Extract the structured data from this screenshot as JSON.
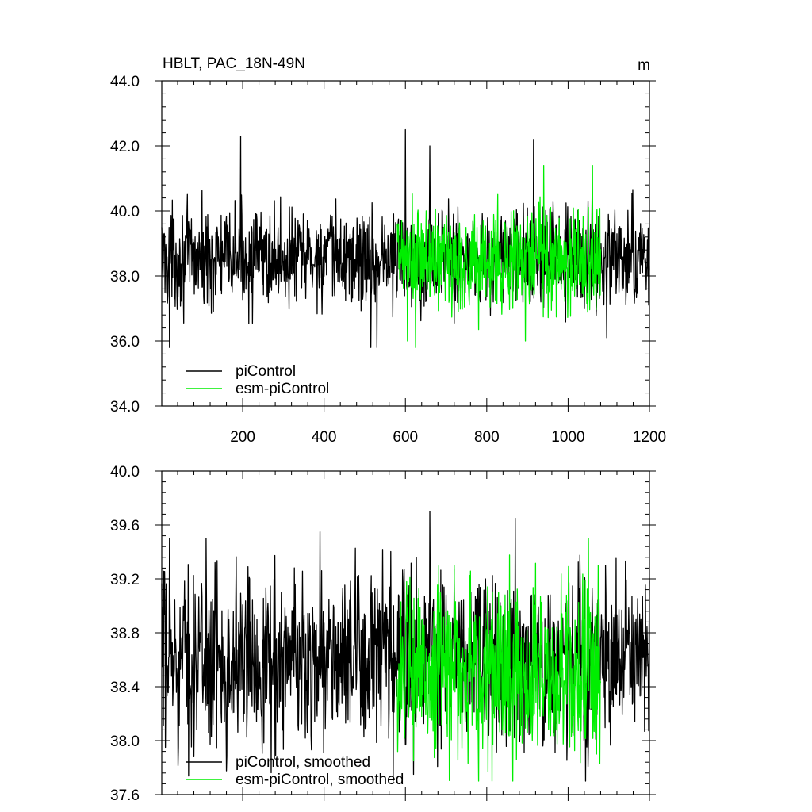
{
  "chart_data": [
    {
      "type": "line",
      "title": "HBLT, PAC_18N-49N",
      "units": "m",
      "xlim": [
        1,
        1200
      ],
      "ylim": [
        34.0,
        44.0
      ],
      "x_ticks": [
        200,
        400,
        600,
        800,
        1000,
        1200
      ],
      "x_tick_labels": [
        "200",
        "400",
        "600",
        "800",
        "1000",
        "1200"
      ],
      "y_ticks": [
        34.0,
        36.0,
        38.0,
        40.0,
        42.0,
        44.0
      ],
      "y_tick_labels": [
        "34.0",
        "36.0",
        "38.0",
        "40.0",
        "42.0",
        "44.0"
      ],
      "legend_position": "bottom-left",
      "grid": false,
      "series": [
        {
          "name": "piControl",
          "color": "#000000",
          "x_range": [
            1,
            1200
          ],
          "mean": 38.55,
          "spread": 0.75,
          "min": 35.8,
          "max": 42.5,
          "peaks": [
            [
              20,
              35.8
            ],
            [
              195,
              42.3
            ],
            [
              515,
              35.8
            ],
            [
              530,
              35.8
            ],
            [
              600,
              42.5
            ],
            [
              660,
              42.0
            ],
            [
              915,
              42.2
            ],
            [
              1095,
              36.1
            ]
          ],
          "values": []
        },
        {
          "name": "esm-piControl",
          "color": "#00ee00",
          "x_range": [
            580,
            1080
          ],
          "mean": 38.45,
          "spread": 0.85,
          "min": 35.8,
          "max": 41.4,
          "peaks": [
            [
              605,
              36.0
            ],
            [
              625,
              35.8
            ],
            [
              895,
              36.0
            ],
            [
              940,
              41.4
            ],
            [
              1060,
              41.4
            ]
          ],
          "values": []
        }
      ]
    },
    {
      "type": "line",
      "title": "",
      "units": "",
      "xlim": [
        1,
        1200
      ],
      "ylim": [
        37.6,
        40.0
      ],
      "x_ticks": [
        200,
        400,
        600,
        800,
        1000,
        1200
      ],
      "x_tick_labels": [],
      "y_ticks": [
        37.6,
        38.0,
        38.4,
        38.8,
        39.2,
        39.6,
        40.0
      ],
      "y_tick_labels": [
        "37.6",
        "38.0",
        "38.4",
        "38.8",
        "39.2",
        "39.6",
        "40.0"
      ],
      "legend_position": "bottom-left",
      "grid": false,
      "series": [
        {
          "name": "piControl, smoothed",
          "color": "#000000",
          "x_range": [
            1,
            1200
          ],
          "mean": 38.6,
          "spread": 0.32,
          "min": 37.7,
          "max": 39.7,
          "peaks": [
            [
              10,
              37.95
            ],
            [
              20,
              39.5
            ],
            [
              110,
              39.5
            ],
            [
              390,
              39.55
            ],
            [
              570,
              37.7
            ],
            [
              620,
              37.75
            ],
            [
              660,
              39.7
            ],
            [
              870,
              39.65
            ],
            [
              1050,
              38.0
            ]
          ],
          "values": []
        },
        {
          "name": "esm-piControl, smoothed",
          "color": "#00ee00",
          "x_range": [
            580,
            1080
          ],
          "mean": 38.5,
          "spread": 0.33,
          "min": 37.7,
          "max": 39.5,
          "peaks": [
            [
              620,
              37.85
            ],
            [
              720,
              39.3
            ],
            [
              780,
              37.7
            ],
            [
              1050,
              39.5
            ],
            [
              1070,
              37.9
            ]
          ],
          "values": []
        }
      ]
    }
  ]
}
